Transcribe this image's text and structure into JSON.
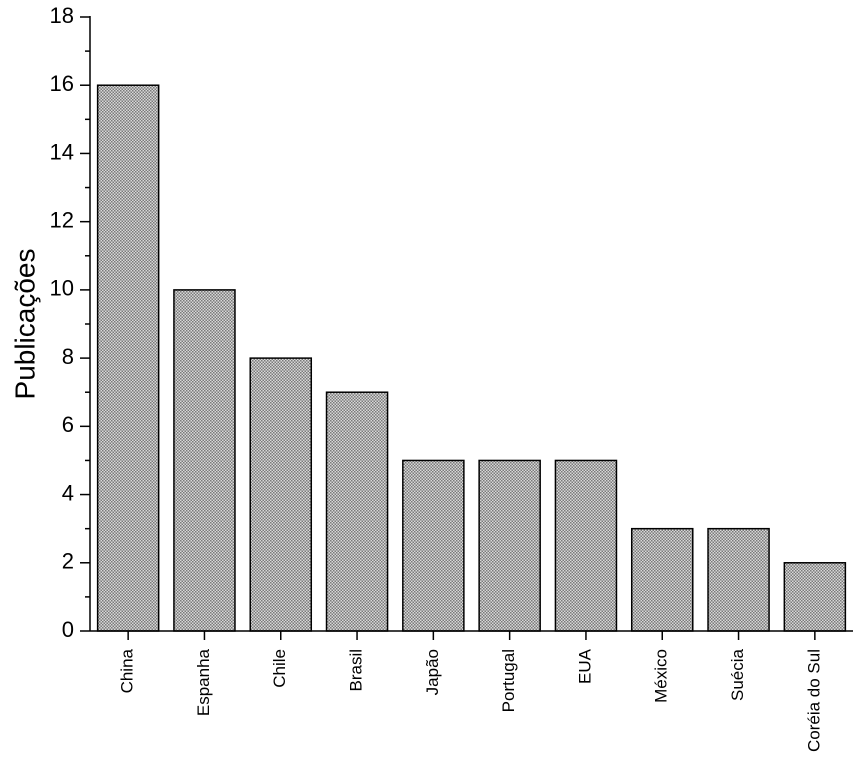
{
  "chart_data": {
    "type": "bar",
    "y_label": "Publicações",
    "categories": [
      "China",
      "Espanha",
      "Chile",
      "Brasil",
      "Japão",
      "Portugal",
      "EUA",
      "México",
      "Suécia",
      "Coréia do Sul"
    ],
    "values": [
      16,
      10,
      8,
      7,
      5,
      5,
      5,
      3,
      3,
      2
    ],
    "color": "#7a7a7a",
    "ylim": [
      0,
      18
    ],
    "yticks": [
      0,
      2,
      4,
      6,
      8,
      10,
      12,
      14,
      16,
      18
    ],
    "yticks_minor": [
      1,
      3,
      5,
      7,
      9,
      11,
      13,
      15,
      17
    ],
    "grid": false
  }
}
